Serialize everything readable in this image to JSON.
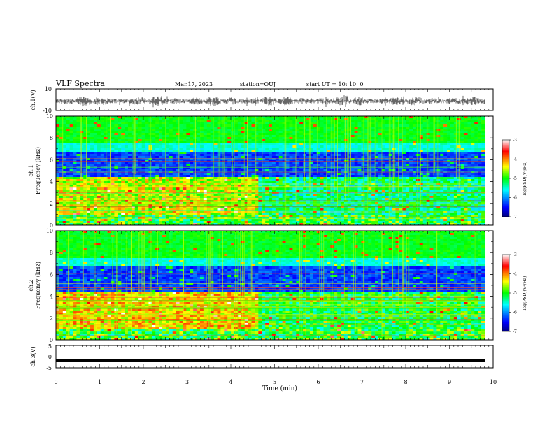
{
  "header": {
    "title": "VLF Spectra",
    "date": "Mar.17, 2023",
    "station": "station=OUJ",
    "start": "start  UT =   10: 10: 0"
  },
  "chart_data": [
    {
      "type": "line",
      "name": "waveform-ch1",
      "ylabel": "ch.1(V)",
      "yticks": [
        "10",
        "-10"
      ],
      "ylim": [
        -10,
        10
      ]
    },
    {
      "type": "heatmap",
      "name": "spectrogram-ch1",
      "ylabel": "ch.1\nFrequency (kHz)",
      "ylabel_lines": [
        "ch.1",
        "Frequency (kHz)"
      ],
      "ylim": [
        0,
        10
      ],
      "yticks": [
        "0",
        "2",
        "4",
        "6",
        "8",
        "10"
      ],
      "colorbar": {
        "label": "log(PSD)(V²/Hz)",
        "range": [
          -7,
          -3
        ],
        "ticks": [
          "-3",
          "-4",
          "-5",
          "-6",
          "-7"
        ]
      }
    },
    {
      "type": "heatmap",
      "name": "spectrogram-ch2",
      "ylabel_lines": [
        "ch.2",
        "Frequency (kHz)"
      ],
      "ylim": [
        0,
        10
      ],
      "yticks": [
        "0",
        "2",
        "4",
        "6",
        "8",
        "10"
      ],
      "colorbar": {
        "label": "log(PSD)(V²/Hz)",
        "range": [
          -7,
          -3
        ],
        "ticks": [
          "-3",
          "-4",
          "-5",
          "-6",
          "-7"
        ]
      }
    },
    {
      "type": "line",
      "name": "waveform-ch3",
      "ylabel": "ch.3(V)",
      "yticks": [
        "5",
        "0",
        "-5"
      ],
      "ylim": [
        -5,
        5
      ],
      "level": -1.7
    }
  ],
  "xaxis": {
    "label": "Time (min)",
    "ticks": [
      "0",
      "1",
      "2",
      "3",
      "4",
      "5",
      "6",
      "7",
      "8",
      "9",
      "10"
    ],
    "range": [
      0,
      10
    ]
  }
}
